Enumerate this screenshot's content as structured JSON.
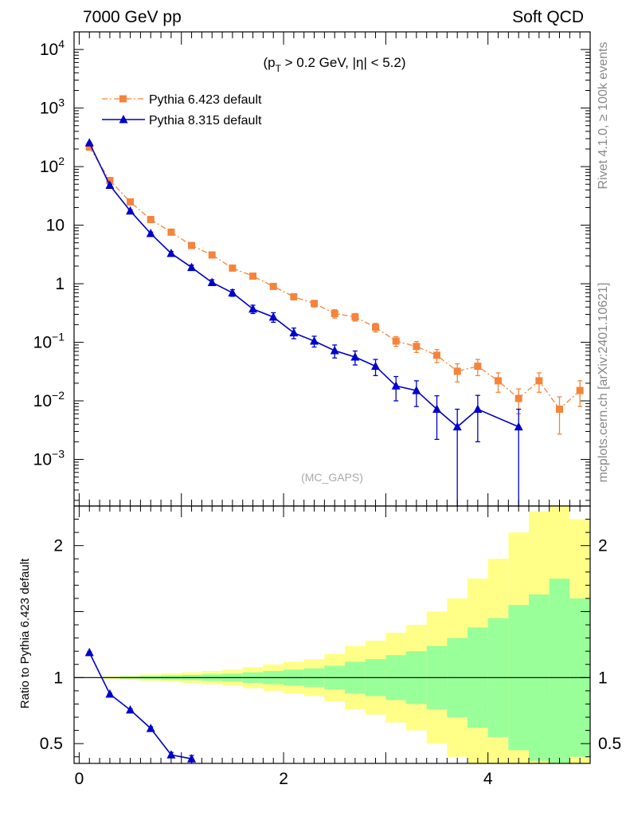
{
  "header": {
    "left": "7000 GeV pp",
    "right": "Soft QCD"
  },
  "side_labels": {
    "rivet": "Rivet 4.1.0, ≥ 100k events",
    "mcplots": "mcplots.cern.ch [arXiv:2401.10621]"
  },
  "colors": {
    "pythia6": "#f5843b",
    "pythia8": "#0000cc",
    "band_inner": "#99ff99",
    "band_outer": "#ffff88",
    "axis": "#000000"
  },
  "chart_data": [
    {
      "type": "line",
      "title": "(p_T > 0.2 GeV, |η| < 5.2)",
      "title_parts": {
        "open": "(p",
        "sub": "T",
        "rest": " > 0.2 GeV, |η| < 5.2)"
      },
      "watermark": "(MC_GAPS)",
      "xlabel": "",
      "ylabel": "",
      "yscale": "log",
      "xlim": [
        -0.05,
        5.0
      ],
      "ylim": [
        0.00016,
        20000
      ],
      "y_ticks": [
        {
          "value": 10000,
          "label_base": "10",
          "label_exp": "4"
        },
        {
          "value": 1000,
          "label_base": "10",
          "label_exp": "3"
        },
        {
          "value": 100,
          "label_base": "10",
          "label_exp": "2"
        },
        {
          "value": 10,
          "label_base": "10",
          "label_exp": ""
        },
        {
          "value": 1,
          "label_base": "1",
          "label_exp": ""
        },
        {
          "value": 0.1,
          "label_base": "10",
          "label_exp": "−1"
        },
        {
          "value": 0.01,
          "label_base": "10",
          "label_exp": "−2"
        },
        {
          "value": 0.001,
          "label_base": "10",
          "label_exp": "−3"
        }
      ],
      "legend_position": "top-left",
      "series": [
        {
          "name": "Pythia 6.423 default",
          "marker": "square",
          "line": "dash-dot",
          "x": [
            0.1,
            0.3,
            0.5,
            0.7,
            0.9,
            1.1,
            1.3,
            1.5,
            1.7,
            1.9,
            2.1,
            2.3,
            2.5,
            2.7,
            2.9,
            3.1,
            3.3,
            3.5,
            3.7,
            3.9,
            4.1,
            4.3,
            4.5,
            4.7,
            4.9
          ],
          "y": [
            215,
            58,
            25,
            12.5,
            7.6,
            4.5,
            3.1,
            1.85,
            1.35,
            0.9,
            0.6,
            0.46,
            0.31,
            0.27,
            0.18,
            0.105,
            0.085,
            0.06,
            0.032,
            0.039,
            0.022,
            0.011,
            0.022,
            0.0072,
            0.015
          ],
          "err": [
            4,
            1.5,
            0.8,
            0.5,
            0.4,
            0.3,
            0.22,
            0.15,
            0.12,
            0.09,
            0.07,
            0.06,
            0.05,
            0.04,
            0.03,
            0.02,
            0.018,
            0.015,
            0.011,
            0.012,
            0.008,
            0.005,
            0.008,
            0.0045,
            0.007
          ]
        },
        {
          "name": "Pythia 8.315 default",
          "marker": "triangle",
          "line": "solid",
          "x": [
            0.1,
            0.3,
            0.5,
            0.7,
            0.9,
            1.1,
            1.3,
            1.5,
            1.7,
            1.9,
            2.1,
            2.3,
            2.5,
            2.7,
            2.9,
            3.1,
            3.3,
            3.5,
            3.7,
            3.9,
            4.3
          ],
          "y": [
            255,
            48,
            17.5,
            7.2,
            3.3,
            1.9,
            1.05,
            0.7,
            0.37,
            0.27,
            0.145,
            0.105,
            0.072,
            0.056,
            0.039,
            0.018,
            0.015,
            0.0072,
            0.0036,
            0.0072,
            0.0036
          ],
          "err": [
            5,
            1.5,
            0.8,
            0.4,
            0.25,
            0.18,
            0.12,
            0.09,
            0.06,
            0.05,
            0.03,
            0.022,
            0.018,
            0.015,
            0.012,
            0.008,
            0.007,
            0.005,
            0.0036,
            0.0052,
            0.0036
          ]
        }
      ]
    },
    {
      "type": "line",
      "title": "",
      "xlabel": "",
      "ylabel": "Ratio to Pythia 6.423 default",
      "xlim": [
        -0.05,
        5.0
      ],
      "ylim": [
        0.35,
        2.3
      ],
      "x_ticks": [
        0,
        2,
        4
      ],
      "y_ticks": [
        {
          "value": 0.5,
          "label": "0.5"
        },
        {
          "value": 1,
          "label": "1"
        },
        {
          "value": 2,
          "label": "2"
        }
      ],
      "reference_line": 1,
      "bands": {
        "x_edges": [
          0.2,
          0.4,
          0.6,
          0.8,
          1.0,
          1.2,
          1.4,
          1.6,
          1.8,
          2.0,
          2.2,
          2.4,
          2.6,
          2.8,
          3.0,
          3.2,
          3.4,
          3.6,
          3.8,
          4.0,
          4.2,
          4.4,
          4.6,
          4.8,
          5.0
        ],
        "inner": [
          0.005,
          0.008,
          0.012,
          0.016,
          0.02,
          0.025,
          0.03,
          0.04,
          0.05,
          0.06,
          0.07,
          0.09,
          0.12,
          0.14,
          0.17,
          0.2,
          0.24,
          0.3,
          0.38,
          0.45,
          0.55,
          0.63,
          0.75,
          0.6
        ],
        "outer": [
          0.01,
          0.016,
          0.024,
          0.032,
          0.04,
          0.05,
          0.06,
          0.08,
          0.1,
          0.12,
          0.14,
          0.18,
          0.24,
          0.28,
          0.34,
          0.4,
          0.5,
          0.6,
          0.75,
          0.9,
          1.1,
          1.26,
          1.5,
          1.2
        ]
      },
      "series": [
        {
          "name": "Pythia 8.315 default",
          "marker": "triangle",
          "x": [
            0.1,
            0.3,
            0.5,
            0.7,
            0.9,
            1.1
          ],
          "y": [
            1.19,
            0.875,
            0.755,
            0.615,
            0.415,
            0.385
          ],
          "err": [
            0.005,
            0.006,
            0.008,
            0.012,
            0.018,
            0.025
          ]
        }
      ]
    }
  ]
}
